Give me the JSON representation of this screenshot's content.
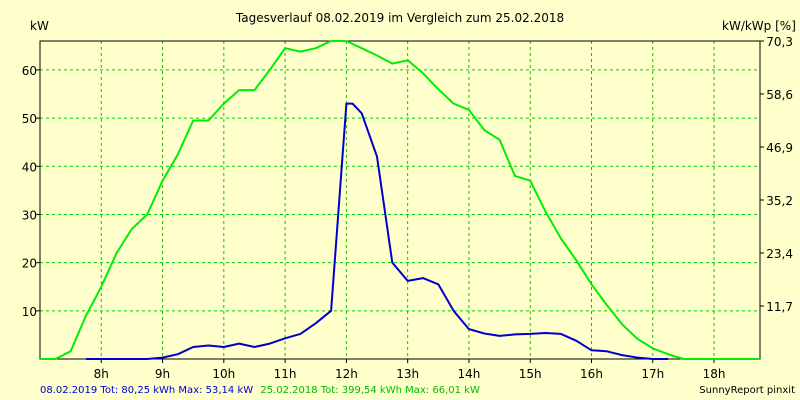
{
  "chart_data": {
    "type": "line",
    "title": "Tagesverlauf 08.02.2019 im Vergleich zum 25.02.2018",
    "ylabel_left": "kW",
    "ylabel_right": "kW/kWp [%]",
    "xlim": [
      7.0,
      18.75
    ],
    "ylim": [
      0,
      66
    ],
    "x_ticks": [
      {
        "value": 8,
        "label": "8h"
      },
      {
        "value": 9,
        "label": "9h"
      },
      {
        "value": 10,
        "label": "10h"
      },
      {
        "value": 11,
        "label": "11h"
      },
      {
        "value": 12,
        "label": "12h"
      },
      {
        "value": 13,
        "label": "13h"
      },
      {
        "value": 14,
        "label": "14h"
      },
      {
        "value": 15,
        "label": "15h"
      },
      {
        "value": 16,
        "label": "16h"
      },
      {
        "value": 17,
        "label": "17h"
      },
      {
        "value": 18,
        "label": "18h"
      }
    ],
    "y_ticks_left": [
      {
        "value": 10,
        "label": "10"
      },
      {
        "value": 20,
        "label": "20"
      },
      {
        "value": 30,
        "label": "30"
      },
      {
        "value": 40,
        "label": "40"
      },
      {
        "value": 50,
        "label": "50"
      },
      {
        "value": 60,
        "label": "60"
      }
    ],
    "y_ticks_right": [
      {
        "value": 11,
        "label": "11,7"
      },
      {
        "value": 22,
        "label": "23,4"
      },
      {
        "value": 33,
        "label": "35,2"
      },
      {
        "value": 44,
        "label": "46,9"
      },
      {
        "value": 55,
        "label": "58,6"
      },
      {
        "value": 66,
        "label": "70,3"
      }
    ],
    "grid": true,
    "series": [
      {
        "name": "08.02.2019",
        "color": "#0000cc",
        "x": [
          7.75,
          8.0,
          8.25,
          8.5,
          8.75,
          9.0,
          9.25,
          9.5,
          9.75,
          10.0,
          10.25,
          10.5,
          10.75,
          11.0,
          11.25,
          11.5,
          11.75,
          12.0,
          12.1,
          12.25,
          12.5,
          12.75,
          13.0,
          13.25,
          13.5,
          13.75,
          14.0,
          14.25,
          14.5,
          14.75,
          15.0,
          15.25,
          15.5,
          15.75,
          16.0,
          16.25,
          16.5,
          16.75,
          17.0,
          17.25
        ],
        "y": [
          0,
          0,
          0,
          0,
          0,
          0.3,
          1.0,
          2.5,
          2.8,
          2.5,
          3.2,
          2.5,
          3.2,
          4.3,
          5.2,
          7.4,
          10.0,
          53.0,
          53.0,
          51.0,
          42.0,
          20.0,
          16.2,
          16.8,
          15.5,
          10.0,
          6.2,
          5.3,
          4.8,
          5.1,
          5.2,
          5.4,
          5.2,
          3.8,
          1.8,
          1.6,
          0.8,
          0.3,
          0,
          0
        ]
      },
      {
        "name": "25.02.2018",
        "color": "#00ee00",
        "x": [
          7.0,
          7.25,
          7.5,
          7.75,
          8.0,
          8.25,
          8.5,
          8.75,
          9.0,
          9.25,
          9.5,
          9.75,
          10.0,
          10.25,
          10.5,
          10.75,
          11.0,
          11.25,
          11.5,
          11.75,
          12.0,
          12.25,
          12.5,
          12.75,
          13.0,
          13.25,
          13.5,
          13.75,
          14.0,
          14.25,
          14.5,
          14.75,
          15.0,
          15.25,
          15.5,
          15.75,
          16.0,
          16.25,
          16.5,
          16.75,
          17.0,
          17.25,
          17.5,
          17.75,
          18.0,
          18.25,
          18.5,
          18.75
        ],
        "y": [
          0,
          0,
          1.6,
          9.0,
          15.0,
          22.0,
          27.0,
          30.0,
          37.0,
          42.5,
          49.5,
          49.5,
          53.0,
          55.8,
          55.8,
          60.0,
          64.5,
          63.8,
          64.5,
          66.0,
          66.0,
          64.5,
          63.0,
          61.3,
          62.0,
          59.3,
          56.0,
          53.0,
          51.7,
          47.5,
          45.5,
          38.0,
          37.0,
          30.6,
          25.0,
          20.5,
          15.5,
          11.2,
          7.2,
          4.2,
          2.2,
          1.0,
          0,
          0,
          0,
          0,
          0,
          0
        ]
      }
    ]
  },
  "footer": {
    "series1_text": "08.02.2019 Tot: 80,25 kWh Max: 53,14 kW",
    "series2_text": "25.02.2018 Tot: 399,54 kWh Max: 66,01 kW",
    "credit": "SunnyReport pinxit",
    "series1_color": "#0000cc",
    "series2_color": "#00bb00"
  }
}
